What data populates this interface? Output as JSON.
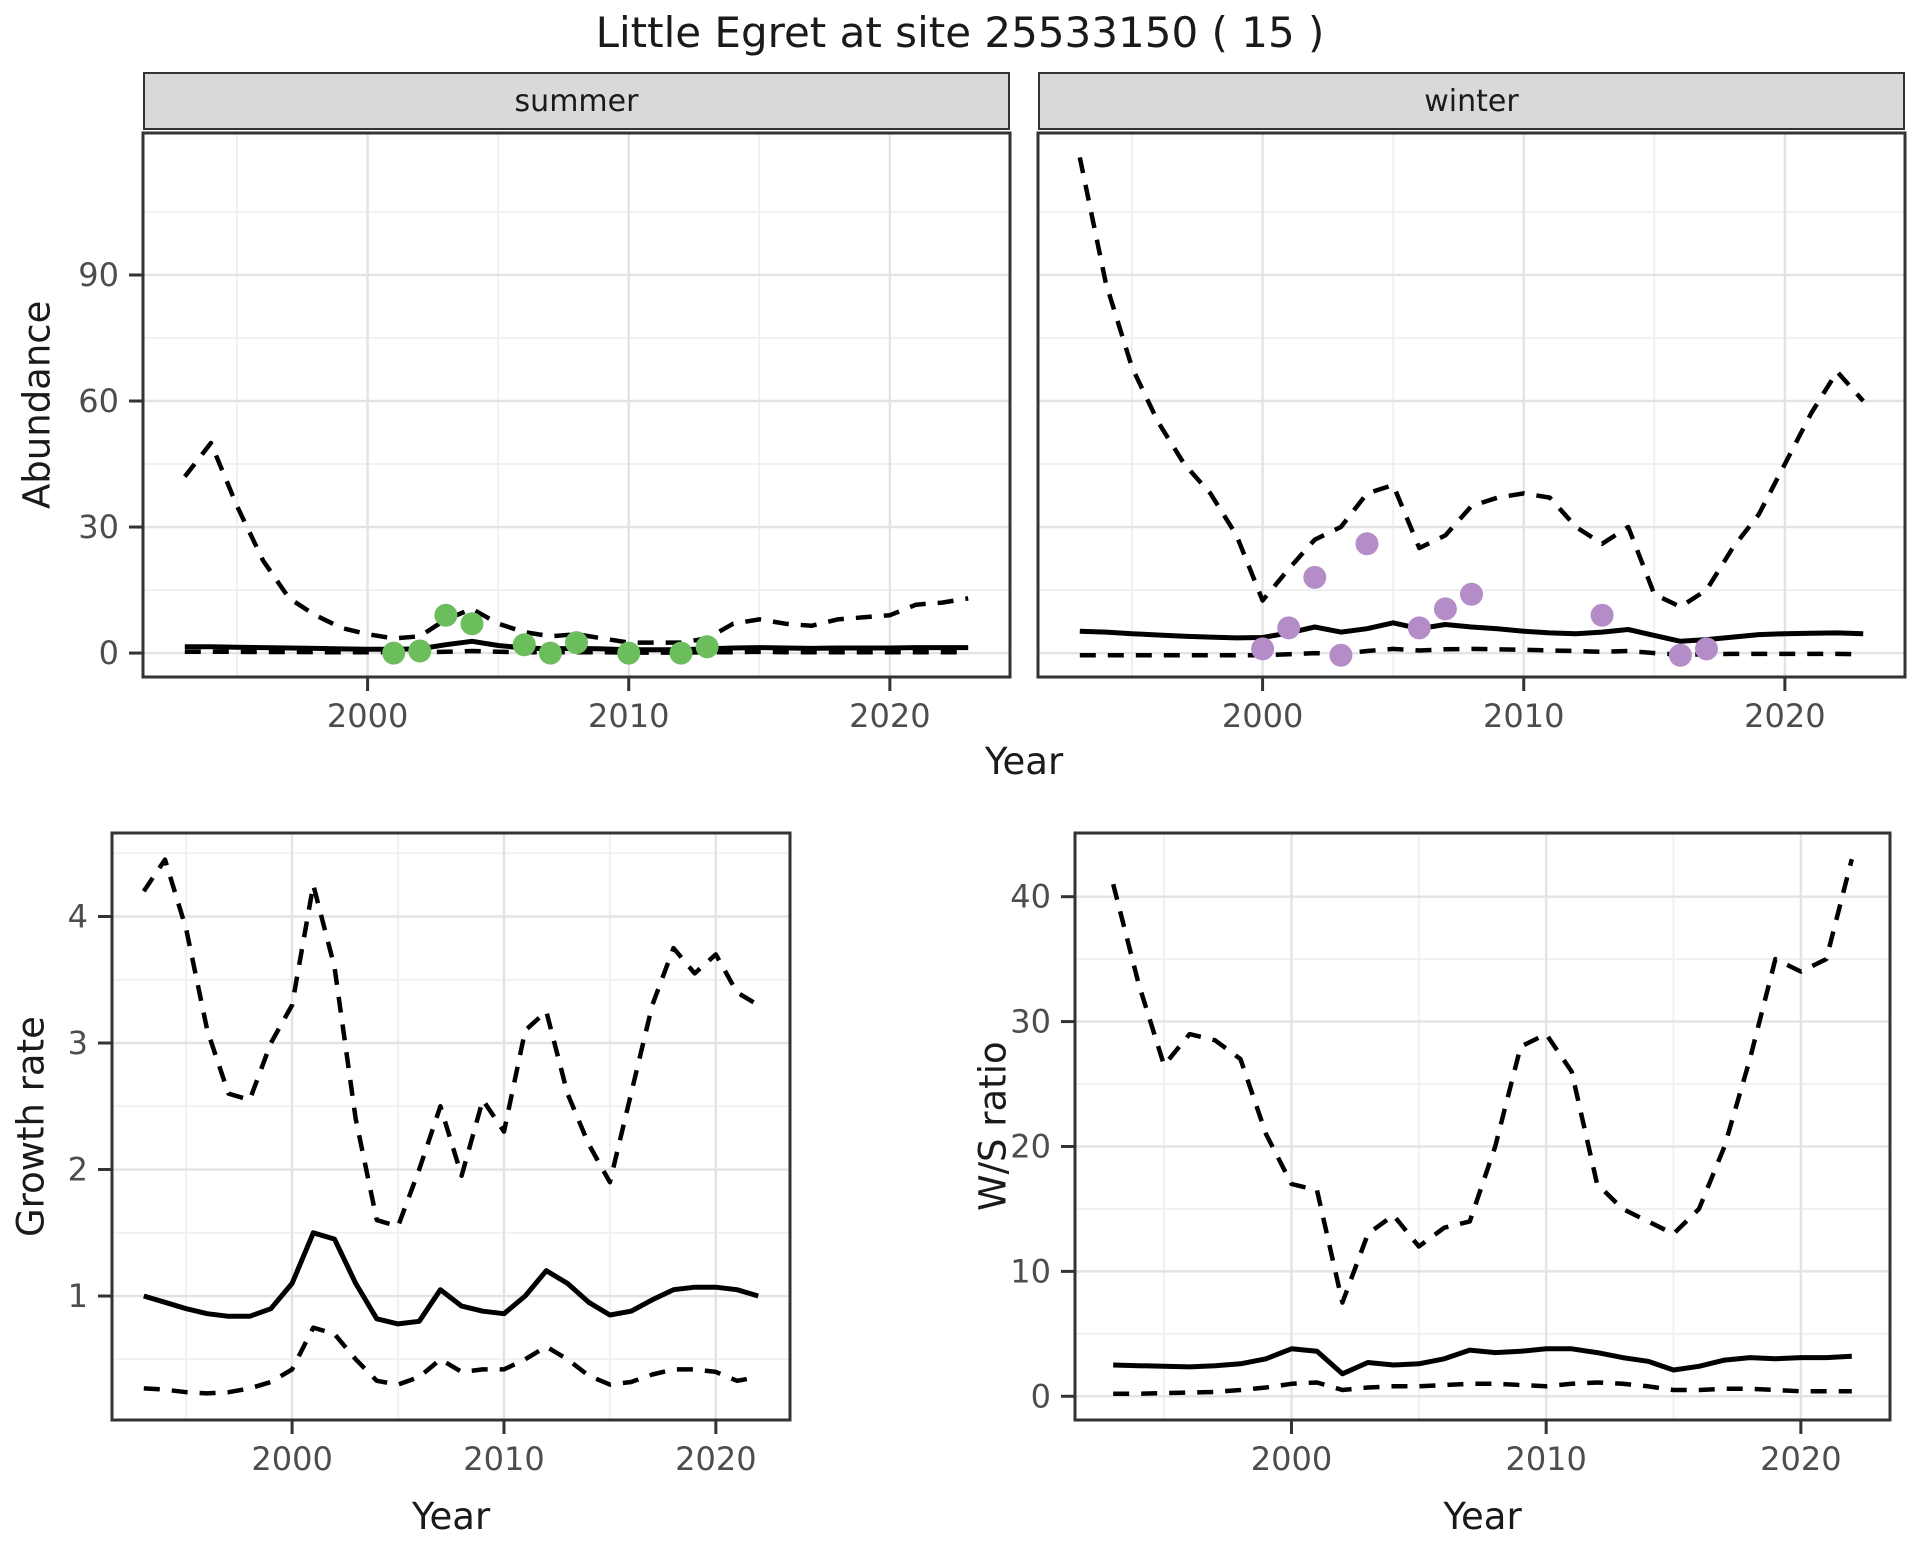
{
  "title": "Little Egret at site 25533150 ( 15 )",
  "colors": {
    "summer_point": "#6CBE5C",
    "winter_point": "#B48CC8",
    "line": "#000000",
    "grid_major": "#e3e3e3",
    "grid_minor": "#efefef",
    "panel_border": "#333333",
    "strip_bg": "#d9d9d9",
    "tick_label": "#4d4d4d",
    "text": "#1a1a1a"
  },
  "chart_data": [
    {
      "id": "abundance-summer",
      "type": "line",
      "facet_label": "summer",
      "xlabel": "Year",
      "ylabel": "Abundance",
      "x_range": [
        1991.4,
        2024.6
      ],
      "y_range": [
        -5.7,
        123.8
      ],
      "xticks": [
        2000,
        2010,
        2020
      ],
      "xticks_minor": [
        1995,
        2005,
        2015
      ],
      "yticks": [
        0,
        30,
        60,
        90
      ],
      "yticks_minor": [
        15,
        45,
        75,
        105
      ],
      "years": [
        1993,
        1994,
        1995,
        1996,
        1997,
        1998,
        1999,
        2000,
        2001,
        2002,
        2003,
        2004,
        2005,
        2006,
        2007,
        2008,
        2009,
        2010,
        2011,
        2012,
        2013,
        2014,
        2015,
        2016,
        2017,
        2018,
        2019,
        2020,
        2021,
        2022,
        2023
      ],
      "series": [
        {
          "name": "upper_95ci",
          "style": "dashed",
          "values": [
            42,
            50,
            35,
            22,
            13,
            9,
            6,
            4.5,
            3.5,
            4,
            8,
            10.5,
            7,
            5,
            4,
            4.5,
            3.5,
            2.5,
            2.5,
            2.5,
            3.5,
            7,
            8,
            7,
            6.5,
            8,
            8.5,
            9,
            11.5,
            12,
            13
          ]
        },
        {
          "name": "estimate",
          "style": "solid",
          "values": [
            1.5,
            1.5,
            1.4,
            1.3,
            1.2,
            1.1,
            1.0,
            0.9,
            0.9,
            1.0,
            2.0,
            2.8,
            1.8,
            1.2,
            1.0,
            1.1,
            1.0,
            0.8,
            0.8,
            0.8,
            1.0,
            1.2,
            1.3,
            1.2,
            1.1,
            1.2,
            1.2,
            1.2,
            1.3,
            1.3,
            1.3
          ]
        },
        {
          "name": "lower_95ci",
          "style": "dashed",
          "values": [
            0.3,
            0.3,
            0.3,
            0.25,
            0.25,
            0.2,
            0.2,
            0.2,
            0.2,
            0.2,
            0.3,
            0.5,
            0.3,
            0.2,
            0.2,
            0.2,
            0.2,
            0.1,
            0.1,
            0.1,
            0.2,
            0.2,
            0.3,
            0.2,
            0.2,
            0.2,
            0.2,
            0.2,
            0.2,
            0.2,
            0.2
          ]
        }
      ],
      "observations": {
        "name": "summer-counts",
        "color_key": "summer_point",
        "years": [
          2001,
          2002,
          2003,
          2004,
          2006,
          2007,
          2008,
          2010,
          2012,
          2013
        ],
        "values": [
          0,
          0.5,
          9,
          7,
          2,
          0,
          2.5,
          0,
          0,
          1.5
        ]
      }
    },
    {
      "id": "abundance-winter",
      "type": "line",
      "facet_label": "winter",
      "xlabel": "Year",
      "ylabel": "Abundance",
      "x_range": [
        1991.4,
        2024.6
      ],
      "y_range": [
        -5.7,
        123.8
      ],
      "xticks": [
        2000,
        2010,
        2020
      ],
      "xticks_minor": [
        1995,
        2005,
        2015
      ],
      "yticks": [
        0,
        30,
        60,
        90
      ],
      "yticks_minor": [
        15,
        45,
        75,
        105
      ],
      "years": [
        1993,
        1994,
        1995,
        1996,
        1997,
        1998,
        1999,
        2000,
        2001,
        2002,
        2003,
        2004,
        2005,
        2006,
        2007,
        2008,
        2009,
        2010,
        2011,
        2012,
        2013,
        2014,
        2015,
        2016,
        2017,
        2018,
        2019,
        2020,
        2021,
        2022,
        2023
      ],
      "series": [
        {
          "name": "upper_95ci",
          "style": "dashed",
          "values": [
            118,
            88,
            68,
            55,
            45,
            38,
            28,
            12.5,
            20,
            27,
            30,
            38,
            40,
            25,
            28,
            35,
            37,
            38,
            37,
            30,
            26,
            30,
            14,
            11,
            15,
            25,
            33,
            45,
            57,
            67,
            60
          ]
        },
        {
          "name": "estimate",
          "style": "solid",
          "values": [
            5.2,
            5.0,
            4.6,
            4.3,
            4.0,
            3.8,
            3.6,
            3.7,
            4.8,
            6.2,
            5.0,
            5.8,
            7.2,
            5.8,
            6.8,
            6.2,
            5.8,
            5.2,
            4.8,
            4.6,
            5.0,
            5.6,
            4.2,
            2.8,
            3.2,
            3.8,
            4.4,
            4.6,
            4.7,
            4.8,
            4.6
          ]
        },
        {
          "name": "lower_95ci",
          "style": "dashed",
          "values": [
            -0.5,
            -0.5,
            -0.5,
            -0.5,
            -0.5,
            -0.5,
            -0.5,
            -0.5,
            -0.3,
            0,
            -0.2,
            0.5,
            1.0,
            0.6,
            0.9,
            1.0,
            0.9,
            0.8,
            0.6,
            0.5,
            0.3,
            0.5,
            0,
            -0.4,
            -0.3,
            -0.2,
            -0.2,
            -0.2,
            -0.2,
            -0.2,
            -0.3
          ]
        }
      ],
      "observations": {
        "name": "winter-counts",
        "color_key": "winter_point",
        "years": [
          2000,
          2001,
          2002,
          2003,
          2004,
          2006,
          2007,
          2008,
          2013,
          2016,
          2017
        ],
        "values": [
          1,
          6,
          18,
          -0.5,
          26,
          6,
          10.5,
          14,
          9,
          -0.5,
          1
        ]
      }
    },
    {
      "id": "growth-rate",
      "type": "line",
      "facet_label": "",
      "xlabel": "Year",
      "ylabel": "Growth rate",
      "x_range": [
        1991.5,
        2023.5
      ],
      "y_range": [
        0.02,
        4.66
      ],
      "xticks": [
        2000,
        2010,
        2020
      ],
      "xticks_minor": [
        1995,
        2005,
        2015
      ],
      "yticks": [
        1,
        2,
        3,
        4
      ],
      "yticks_minor": [
        0.5,
        1.5,
        2.5,
        3.5,
        4.5
      ],
      "years": [
        1993,
        1994,
        1995,
        1996,
        1997,
        1998,
        1999,
        2000,
        2001,
        2002,
        2003,
        2004,
        2005,
        2006,
        2007,
        2008,
        2009,
        2010,
        2011,
        2012,
        2013,
        2014,
        2015,
        2016,
        2017,
        2018,
        2019,
        2020,
        2021,
        2022
      ],
      "series": [
        {
          "name": "upper_95ci",
          "style": "dashed",
          "values": [
            4.2,
            4.45,
            3.9,
            3.1,
            2.6,
            2.55,
            3.0,
            3.3,
            4.25,
            3.6,
            2.4,
            1.6,
            1.55,
            2.0,
            2.5,
            1.95,
            2.55,
            2.3,
            3.1,
            3.25,
            2.6,
            2.2,
            1.9,
            2.6,
            3.3,
            3.75,
            3.55,
            3.7,
            3.4,
            3.3
          ]
        },
        {
          "name": "estimate",
          "style": "solid",
          "values": [
            1.0,
            0.95,
            0.9,
            0.86,
            0.84,
            0.84,
            0.9,
            1.1,
            1.5,
            1.45,
            1.1,
            0.82,
            0.78,
            0.8,
            1.05,
            0.92,
            0.88,
            0.86,
            1.0,
            1.2,
            1.1,
            0.95,
            0.85,
            0.88,
            0.97,
            1.05,
            1.07,
            1.07,
            1.05,
            1.0
          ]
        },
        {
          "name": "lower_95ci",
          "style": "dashed",
          "values": [
            0.27,
            0.26,
            0.24,
            0.23,
            0.24,
            0.27,
            0.32,
            0.42,
            0.75,
            0.7,
            0.5,
            0.33,
            0.3,
            0.36,
            0.5,
            0.4,
            0.42,
            0.42,
            0.5,
            0.6,
            0.5,
            0.37,
            0.3,
            0.32,
            0.38,
            0.42,
            0.42,
            0.4,
            0.33,
            0.36
          ]
        }
      ]
    },
    {
      "id": "ws-ratio",
      "type": "line",
      "facet_label": "",
      "xlabel": "Year",
      "ylabel": "W/S ratio",
      "x_range": [
        1991.5,
        2023.5
      ],
      "y_range": [
        -1.9,
        45.1
      ],
      "xticks": [
        2000,
        2010,
        2020
      ],
      "xticks_minor": [
        1995,
        2005,
        2015
      ],
      "yticks": [
        0,
        10,
        20,
        30,
        40
      ],
      "yticks_minor": [
        5,
        15,
        25,
        35,
        45
      ],
      "years": [
        1993,
        1994,
        1995,
        1996,
        1997,
        1998,
        1999,
        2000,
        2001,
        2002,
        2003,
        2004,
        2005,
        2006,
        2007,
        2008,
        2009,
        2010,
        2011,
        2012,
        2013,
        2014,
        2015,
        2016,
        2017,
        2018,
        2019,
        2020,
        2021,
        2022
      ],
      "series": [
        {
          "name": "upper_95ci",
          "style": "dashed",
          "values": [
            41,
            33,
            26.5,
            29,
            28.5,
            27,
            21,
            17,
            16.5,
            7.5,
            13,
            14.5,
            12,
            13.5,
            14,
            20,
            28,
            29,
            26,
            17,
            15,
            14,
            13,
            15,
            20,
            27,
            35,
            34,
            35,
            43
          ]
        },
        {
          "name": "estimate",
          "style": "solid",
          "values": [
            2.5,
            2.45,
            2.4,
            2.35,
            2.45,
            2.6,
            3.0,
            3.8,
            3.6,
            1.8,
            2.7,
            2.5,
            2.6,
            3.0,
            3.7,
            3.5,
            3.6,
            3.8,
            3.8,
            3.5,
            3.1,
            2.8,
            2.1,
            2.4,
            2.9,
            3.1,
            3.0,
            3.1,
            3.1,
            3.2
          ]
        },
        {
          "name": "lower_95ci",
          "style": "dashed",
          "values": [
            0.2,
            0.2,
            0.25,
            0.3,
            0.35,
            0.5,
            0.7,
            1.0,
            1.1,
            0.5,
            0.7,
            0.8,
            0.8,
            0.9,
            1.0,
            1.0,
            0.9,
            0.8,
            1.0,
            1.1,
            1.0,
            0.8,
            0.5,
            0.5,
            0.6,
            0.6,
            0.5,
            0.4,
            0.4,
            0.4
          ]
        }
      ]
    }
  ]
}
